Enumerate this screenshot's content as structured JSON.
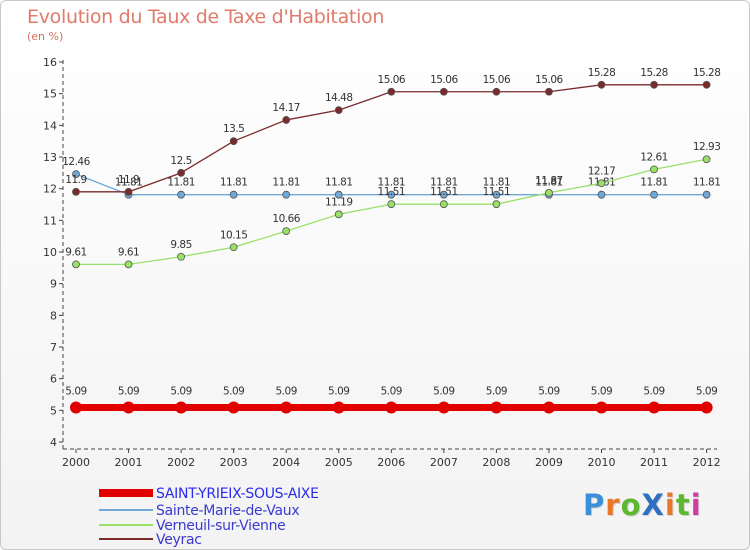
{
  "header": {
    "title": "Evolution du Taux de Taxe d'Habitation",
    "subtitle": "(en %)"
  },
  "logo": {
    "text": "ProXiti",
    "colors": [
      "#3a8fd8",
      "#e8772a",
      "#5cb82e",
      "#2d6fc2",
      "#e8772a",
      "#5cb82e",
      "#d43ba0"
    ]
  },
  "chart_data": {
    "type": "line",
    "title": "Evolution du Taux de Taxe d'Habitation",
    "ylabel": "(en %)",
    "xlabel": "",
    "x": [
      "2000",
      "2001",
      "2002",
      "2003",
      "2004",
      "2005",
      "2006",
      "2007",
      "2008",
      "2009",
      "2010",
      "2011",
      "2012"
    ],
    "ylim": [
      4,
      16
    ],
    "yticks": [
      "4",
      "5",
      "6",
      "7",
      "8",
      "9",
      "10",
      "11",
      "12",
      "13",
      "14",
      "15",
      "16"
    ],
    "grid": false,
    "legend_position": "bottom-left",
    "series": [
      {
        "name": "SAINT-YRIEIX-SOUS-AIXE",
        "color": "#e00000",
        "values": [
          5.09,
          5.09,
          5.09,
          5.09,
          5.09,
          5.09,
          5.09,
          5.09,
          5.09,
          5.09,
          5.09,
          5.09,
          5.09
        ],
        "labels": [
          "5.09",
          "5.09",
          "5.09",
          "5.09",
          "5.09",
          "5.09",
          "5.09",
          "5.09",
          "5.09",
          "5.09",
          "5.09",
          "5.09",
          "5.09"
        ]
      },
      {
        "name": "Sainte-Marie-de-Vaux",
        "color": "#6fa8d6",
        "values": [
          12.46,
          11.81,
          11.81,
          11.81,
          11.81,
          11.81,
          11.81,
          11.81,
          11.81,
          11.81,
          11.81,
          11.81,
          11.81
        ],
        "labels": [
          "12.46",
          "11.81",
          "11.81",
          "11.81",
          "11.81",
          "11.81",
          "11.81",
          "11.81",
          "11.81",
          "11.81",
          "11.81",
          "11.81",
          "11.81"
        ]
      },
      {
        "name": "Verneuil-sur-Vienne",
        "color": "#99e068",
        "values": [
          9.61,
          9.61,
          9.85,
          10.15,
          10.66,
          11.19,
          11.51,
          11.51,
          11.51,
          11.87,
          12.17,
          12.61,
          12.93
        ],
        "labels": [
          "9.61",
          "9.61",
          "9.85",
          "10.15",
          "10.66",
          "11.19",
          "11.51",
          "11.51",
          "11.51",
          "11.87",
          "12.17",
          "12.61",
          "12.93"
        ]
      },
      {
        "name": "Veyrac",
        "color": "#7a2a2a",
        "values": [
          11.9,
          11.9,
          12.5,
          13.5,
          14.17,
          14.48,
          15.06,
          15.06,
          15.06,
          15.06,
          15.28,
          15.28,
          15.28
        ],
        "labels": [
          "11.9",
          "11.9",
          "12.5",
          "13.5",
          "14.17",
          "14.48",
          "15.06",
          "15.06",
          "15.06",
          "15.06",
          "15.28",
          "15.28",
          "15.28"
        ]
      }
    ]
  }
}
